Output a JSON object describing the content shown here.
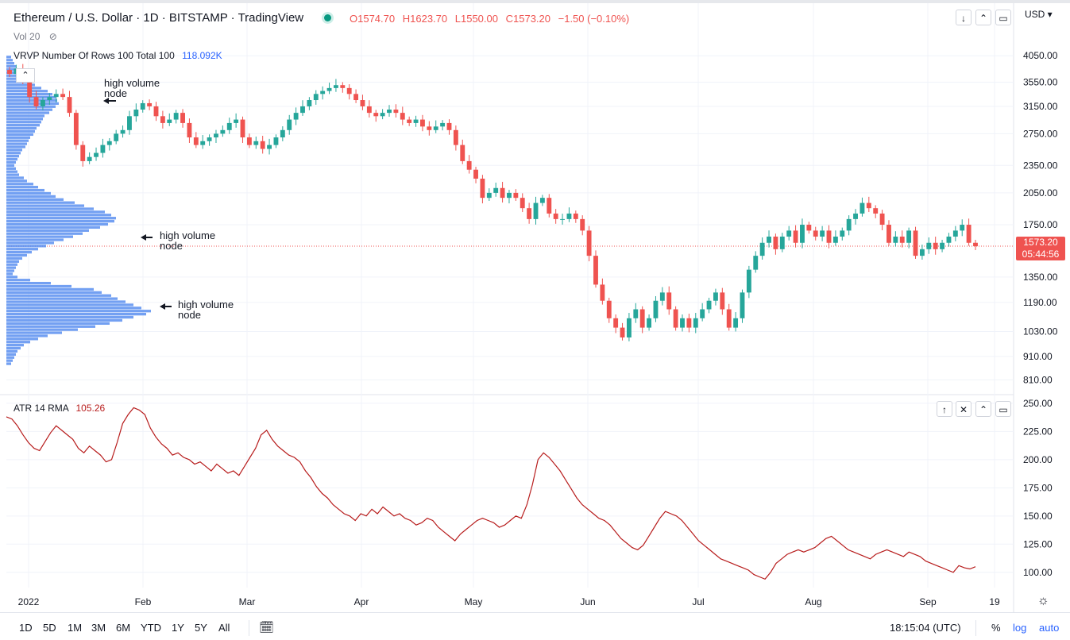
{
  "header": {
    "symbol": "Ethereum / U.S. Dollar · 1D · BITSTAMP · TradingView",
    "o": "O1574.70",
    "h": "H1623.70",
    "l": "L1550.00",
    "c": "C1573.20",
    "change": "−1.50 (−0.10%)",
    "currency": "USD ▾",
    "vol": "Vol 20",
    "vrvp_label": "VRVP Number Of Rows 100 Total 100",
    "vrvp_value": "118.092K"
  },
  "atr_legend": {
    "label": "ATR 14 RMA",
    "value": "105.26"
  },
  "price_tag": {
    "price": "1573.20",
    "countdown": "05:44:56"
  },
  "annotations": [
    {
      "text_line1": "high volume",
      "text_line2": "node"
    },
    {
      "text_line1": "high volume",
      "text_line2": "node"
    },
    {
      "text_line1": "high volume",
      "text_line2": "node"
    }
  ],
  "bottom_bar": {
    "timeframes": [
      "1D",
      "5D",
      "1M",
      "3M",
      "6M",
      "YTD",
      "1Y",
      "5Y",
      "All"
    ],
    "clock": "18:15:04 (UTC)",
    "percent": "%",
    "log": "log",
    "auto": "auto"
  },
  "colors": {
    "up": "#26a69a",
    "down": "#ef5350",
    "volume": "#5b8ff0",
    "atr": "#b71c1c",
    "accent": "#2962ff"
  },
  "chart_data": [
    {
      "type": "candlestick",
      "title": "Ethereum / U.S. Dollar · 1D · BITSTAMP · TradingView",
      "y_ticks": [
        4050,
        3550,
        3150,
        2750,
        2350,
        2050,
        1750,
        1350,
        1190,
        1030,
        910,
        810
      ],
      "y_tick_labels": [
        "4050.00",
        "3550.00",
        "3150.00",
        "2750.00",
        "2350.00",
        "2050.00",
        "1750.00",
        "1350.00",
        "1190.00",
        "1030.00",
        "910.00",
        "810.00"
      ],
      "x_tick_labels": [
        "2022",
        "Feb",
        "Mar",
        "Apr",
        "May",
        "Jun",
        "Jul",
        "Aug",
        "Sep",
        "19"
      ],
      "scale": "log",
      "last_price": 1573.2,
      "closes": [
        3700,
        3800,
        3600,
        3300,
        3150,
        3250,
        3300,
        3350,
        3300,
        3050,
        2600,
        2400,
        2450,
        2500,
        2600,
        2650,
        2750,
        2800,
        3000,
        3100,
        3200,
        3150,
        3000,
        2900,
        2950,
        3050,
        2900,
        2700,
        2600,
        2650,
        2700,
        2750,
        2800,
        2900,
        2950,
        2700,
        2600,
        2650,
        2550,
        2600,
        2700,
        2800,
        2950,
        3050,
        3150,
        3250,
        3350,
        3400,
        3450,
        3500,
        3450,
        3350,
        3250,
        3150,
        3050,
        3000,
        3050,
        3100,
        3050,
        2950,
        2900,
        2950,
        2850,
        2800,
        2850,
        2900,
        2800,
        2600,
        2400,
        2300,
        2200,
        2000,
        2050,
        2100,
        2000,
        2050,
        2000,
        1900,
        1800,
        1950,
        2000,
        1850,
        1800,
        1800,
        1850,
        1800,
        1700,
        1500,
        1300,
        1200,
        1100,
        1050,
        1000,
        1100,
        1150,
        1050,
        1100,
        1200,
        1250,
        1150,
        1050,
        1100,
        1050,
        1100,
        1150,
        1200,
        1250,
        1150,
        1050,
        1100,
        1250,
        1400,
        1500,
        1600,
        1650,
        1550,
        1650,
        1700,
        1600,
        1750,
        1700,
        1650,
        1700,
        1600,
        1650,
        1700,
        1800,
        1850,
        1950,
        1900,
        1850,
        1750,
        1600,
        1650,
        1600,
        1700,
        1500,
        1550,
        1600,
        1550,
        1600,
        1650,
        1700,
        1750,
        1600,
        1573
      ]
    },
    {
      "type": "bar",
      "title": "VRVP Number Of Rows 100 Total 100",
      "orientation": "horizontal",
      "value_total": "118.092K",
      "price_levels_high_to_low": "4050 to 870",
      "values": [
        6,
        8,
        10,
        12,
        14,
        16,
        20,
        24,
        30,
        36,
        44,
        52,
        58,
        62,
        64,
        66,
        62,
        58,
        54,
        48,
        46,
        44,
        42,
        38,
        36,
        34,
        30,
        28,
        26,
        24,
        20,
        18,
        16,
        14,
        12,
        10,
        12,
        14,
        16,
        22,
        26,
        34,
        40,
        48,
        56,
        62,
        72,
        86,
        98,
        110,
        124,
        132,
        138,
        136,
        128,
        118,
        104,
        96,
        84,
        72,
        60,
        50,
        40,
        32,
        26,
        20,
        16,
        14,
        12,
        10,
        8,
        14,
        30,
        56,
        82,
        110,
        120,
        132,
        140,
        150,
        160,
        170,
        182,
        176,
        160,
        146,
        130,
        112,
        90,
        70,
        52,
        40,
        30,
        22,
        18,
        14,
        12,
        10,
        8,
        6
      ]
    },
    {
      "type": "line",
      "title": "ATR 14 RMA",
      "y_ticks": [
        250,
        225,
        200,
        175,
        150,
        125,
        100
      ],
      "y_tick_labels": [
        "250.00",
        "225.00",
        "200.00",
        "175.00",
        "150.00",
        "125.00",
        "100.00"
      ],
      "ylim": [
        90,
        252
      ],
      "last_value": 105.26,
      "values": [
        238,
        236,
        230,
        222,
        215,
        210,
        208,
        216,
        224,
        230,
        226,
        222,
        218,
        210,
        206,
        212,
        208,
        204,
        198,
        200,
        215,
        232,
        240,
        246,
        244,
        240,
        228,
        220,
        214,
        210,
        204,
        206,
        202,
        200,
        196,
        198,
        194,
        190,
        196,
        192,
        188,
        190,
        186,
        194,
        202,
        210,
        222,
        226,
        218,
        212,
        208,
        204,
        202,
        198,
        190,
        184,
        176,
        170,
        166,
        160,
        156,
        152,
        150,
        146,
        152,
        150,
        156,
        152,
        158,
        154,
        150,
        152,
        148,
        146,
        142,
        144,
        148,
        146,
        140,
        136,
        132,
        128,
        134,
        138,
        142,
        146,
        148,
        146,
        144,
        140,
        142,
        146,
        150,
        148,
        160,
        178,
        200,
        206,
        202,
        196,
        190,
        182,
        174,
        166,
        160,
        156,
        152,
        148,
        146,
        142,
        136,
        130,
        126,
        122,
        120,
        124,
        132,
        140,
        148,
        154,
        152,
        150,
        146,
        140,
        134,
        128,
        124,
        120,
        116,
        112,
        110,
        108,
        106,
        104,
        102,
        98,
        96,
        94,
        100,
        108,
        112,
        116,
        118,
        120,
        118,
        120,
        122,
        126,
        130,
        132,
        128,
        124,
        120,
        118,
        116,
        114,
        112,
        116,
        118,
        120,
        118,
        116,
        114,
        118,
        116,
        114,
        110,
        108,
        106,
        104,
        102,
        100,
        106,
        104,
        103,
        105
      ]
    }
  ]
}
